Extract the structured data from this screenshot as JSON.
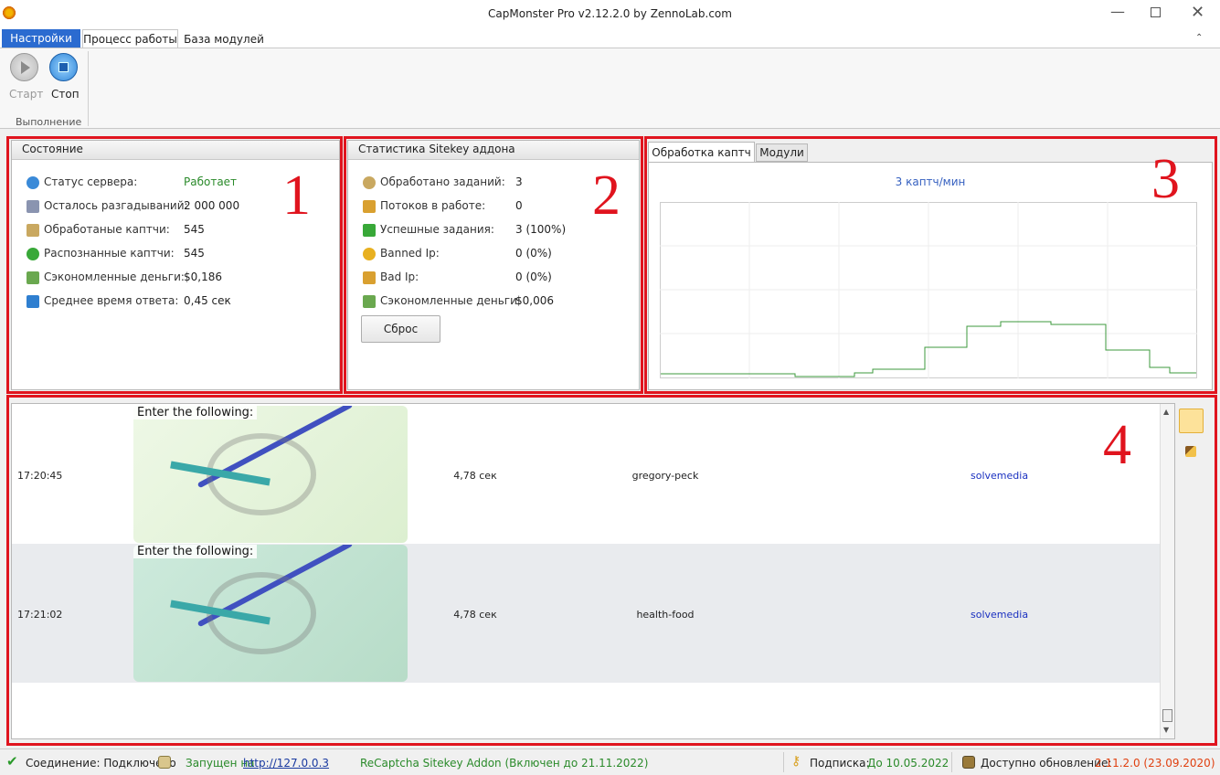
{
  "window": {
    "title": "CapMonster Pro v2.12.2.0 by ZennoLab.com"
  },
  "ribbon": {
    "tabs": [
      "Настройки",
      "Процесс работы",
      "База модулей"
    ],
    "buttons": [
      "Старт",
      "Стоп"
    ],
    "group": "Выполнение"
  },
  "status_panel": {
    "title": "Состояние",
    "rows": [
      [
        "Статус сервера:",
        "Работает"
      ],
      [
        "Осталось разгадываний:",
        "2 000 000"
      ],
      [
        "Обработаные каптчи:",
        "545"
      ],
      [
        "Распознанные каптчи:",
        "545"
      ],
      [
        "Сэкономленные деньги:",
        "$0,186"
      ],
      [
        "Среднее время ответа:",
        "0,45 сек"
      ]
    ]
  },
  "sitekey_panel": {
    "title": "Статистика Sitekey аддона",
    "rows": [
      [
        "Обработано заданий:",
        "3"
      ],
      [
        "Потоков в работе:",
        "0"
      ],
      [
        "Успешные задания:",
        "3 (100%)"
      ],
      [
        "Banned Ip:",
        "0 (0%)"
      ],
      [
        "Bad Ip:",
        "0 (0%)"
      ],
      [
        "Сэкономленные деньги:",
        "$0,006"
      ]
    ],
    "button": "Сброс"
  },
  "chart_panel": {
    "tabs": [
      "Обработка каптч",
      "Модули"
    ],
    "rate": "3 каптч/мин"
  },
  "annotations": [
    "1",
    "2",
    "3",
    "4"
  ],
  "log": {
    "rows": [
      {
        "time": "17:20:45",
        "prompt": "Enter the following:",
        "duration": "4,78 сек",
        "answer": "gregory-peck",
        "service": "solvemedia"
      },
      {
        "time": "17:21:02",
        "prompt": "Enter the following:",
        "duration": "4,78 сек",
        "answer": "health-food",
        "service": "solvemedia"
      }
    ]
  },
  "statusbar": {
    "connection": "Соединение: Подключено",
    "running": "Запущен на",
    "url": "http://127.0.0.3",
    "addon": "ReCaptcha Sitekey Addon (Включен до 21.11.2022)",
    "subscription_label": "Подписка:",
    "subscription": "До 10.05.2022",
    "update_label": "Доступно обновление:",
    "update": "2.11.2.0 (23.09.2020)"
  }
}
